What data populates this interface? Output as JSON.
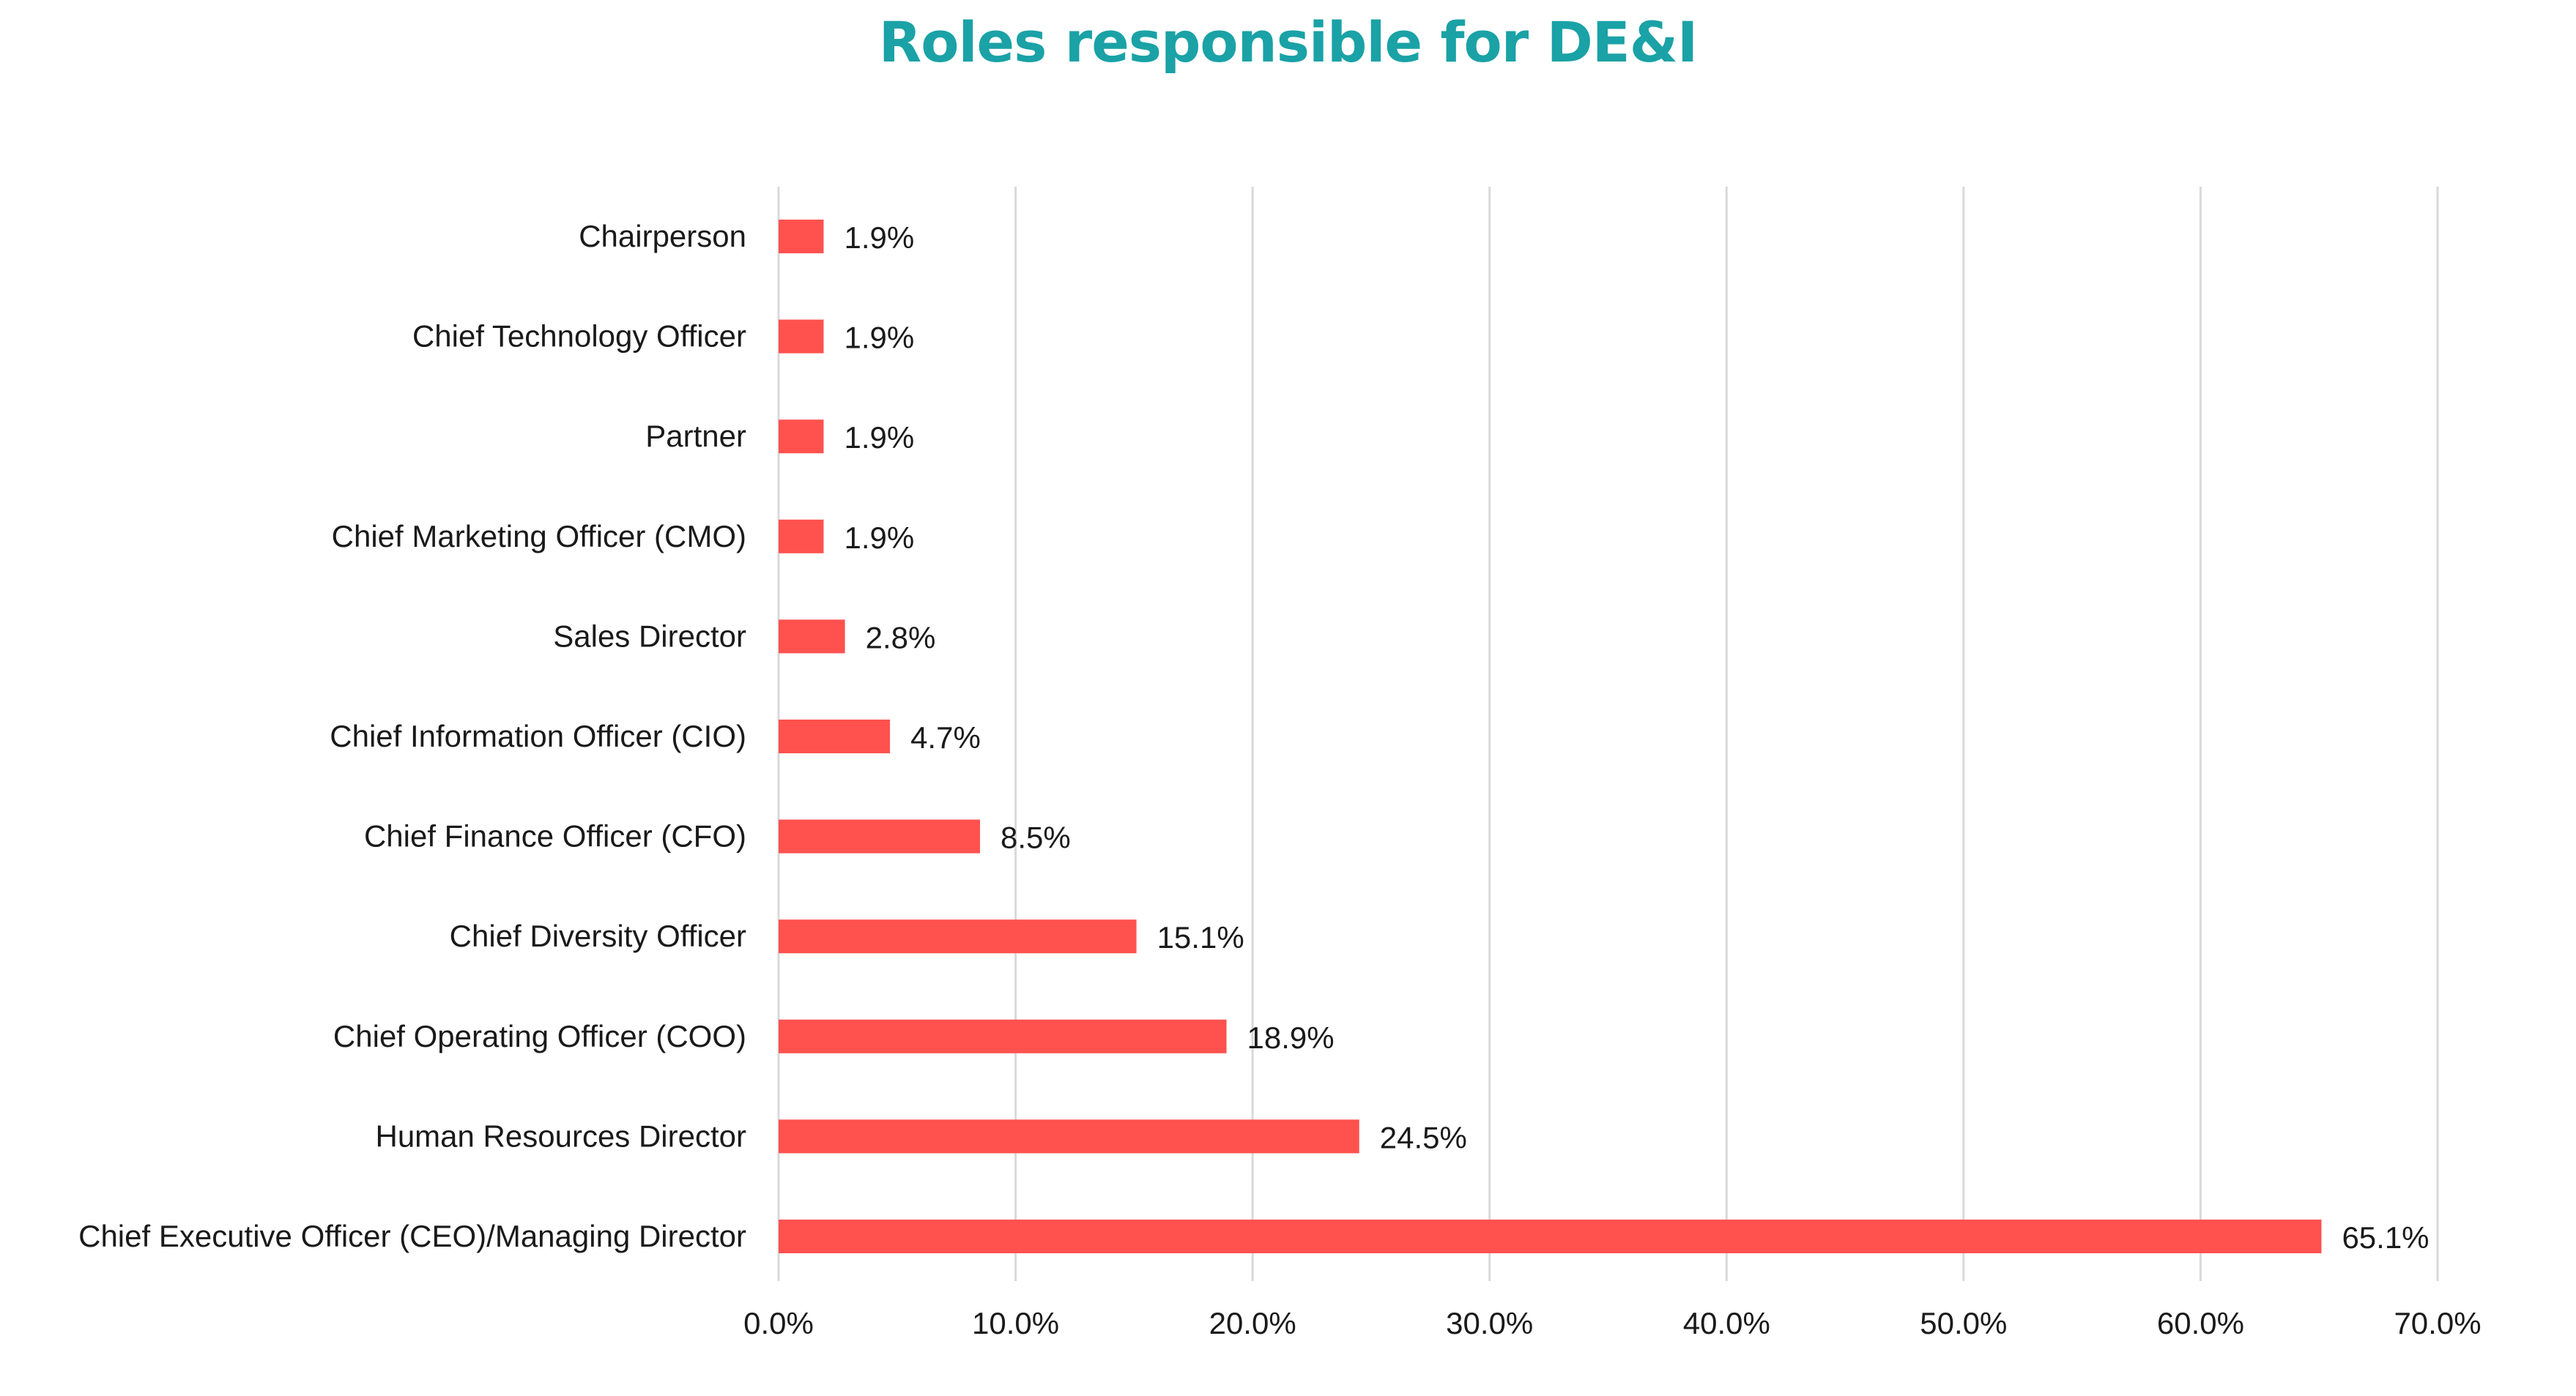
{
  "chart_data": {
    "type": "bar",
    "orientation": "horizontal",
    "title": "Roles responsible for DE&I",
    "categories": [
      "Chairperson",
      "Chief Technology Officer",
      "Partner",
      "Chief Marketing Officer (CMO)",
      "Sales Director",
      "Chief Information Officer (CIO)",
      "Chief Finance Officer (CFO)",
      "Chief Diversity Officer",
      "Chief Operating Officer (COO)",
      "Human Resources Director",
      "Chief Executive Officer (CEO)/Managing Director"
    ],
    "values": [
      1.9,
      1.9,
      1.9,
      1.9,
      2.8,
      4.7,
      8.5,
      15.1,
      18.9,
      24.5,
      65.1
    ],
    "value_labels": [
      "1.9%",
      "1.9%",
      "1.9%",
      "1.9%",
      "2.8%",
      "4.7%",
      "8.5%",
      "15.1%",
      "18.9%",
      "24.5%",
      "65.1%"
    ],
    "xlim": [
      0,
      70
    ],
    "x_ticks": [
      0,
      10,
      20,
      30,
      40,
      50,
      60,
      70
    ],
    "x_tick_labels": [
      "0.0%",
      "10.0%",
      "20.0%",
      "30.0%",
      "40.0%",
      "50.0%",
      "60.0%",
      "70.0%"
    ],
    "xlabel": "",
    "ylabel": "",
    "grid": "vertical",
    "legend": "none",
    "colors": {
      "bar": "#ff524f",
      "title": "#1aa2a6",
      "grid": "#d9d9d9",
      "text": "#1a1a1a"
    }
  }
}
